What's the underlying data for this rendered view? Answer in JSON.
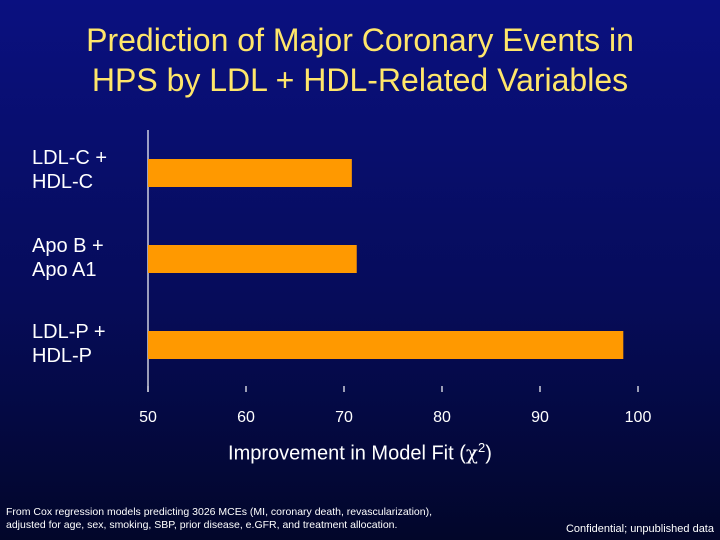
{
  "slide": {
    "title_line1": "Prediction of Major Coronary Events in",
    "title_line2": "HPS by LDL + HDL-Related Variables",
    "footnote_line1": "From Cox regression models predicting 3026 MCEs (MI, coronary death, revascularization),",
    "footnote_line2": "adjusted for age, sex, smoking, SBP, prior disease, e.GFR, and treatment allocation.",
    "confidential": "Confidential; unpublished data"
  },
  "colors": {
    "bar": "#ff9900",
    "axis": "#ffffff",
    "title": "#ffe66a"
  },
  "chart_data": {
    "type": "bar",
    "orientation": "horizontal",
    "categories": [
      {
        "line1": "LDL-C +",
        "line2": "HDL-C"
      },
      {
        "line1": "Apo B +",
        "line2": "Apo A1"
      },
      {
        "line1": "LDL-P +",
        "line2": "HDL-P"
      }
    ],
    "values": [
      70.8,
      71.3,
      98.5
    ],
    "xlim": [
      50,
      100
    ],
    "xticks": [
      50,
      60,
      70,
      80,
      90,
      100
    ],
    "xlabel_text": "Improvement in Model Fit (",
    "xlabel_symbol": "χ",
    "xlabel_sup": "2",
    "xlabel_close": ")",
    "ylabel": "",
    "grid": false
  }
}
